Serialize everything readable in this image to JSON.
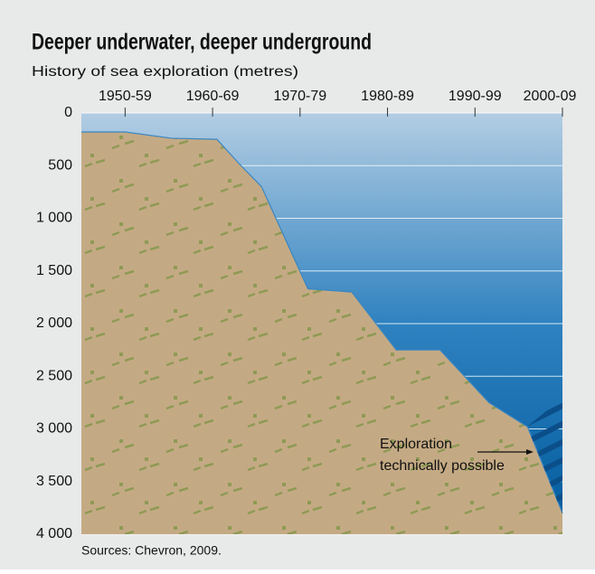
{
  "chart_data": {
    "type": "area",
    "title": "Deeper underwater, deeper underground",
    "subtitle": "History of sea exploration (metres)",
    "source": "Sources: Chevron, 2009.",
    "annotation": [
      "Exploration",
      "technically possible"
    ],
    "x": [
      1945,
      1950,
      1955.3,
      1960.5,
      1962.9,
      1965.6,
      1970.9,
      1975.9,
      1981,
      1986,
      1991.6,
      1996,
      2000
    ],
    "values": [
      180,
      180,
      240,
      250,
      470,
      700,
      1670,
      1700,
      2250,
      2250,
      2750,
      2980,
      3800
    ],
    "color": "#c4aa84",
    "xlim": [
      1945,
      2000
    ],
    "xticks": [
      {
        "value": 1950,
        "label": "1950-59"
      },
      {
        "value": 1960,
        "label": "1960-69"
      },
      {
        "value": 1970,
        "label": "1970-79"
      },
      {
        "value": 1980,
        "label": "1980-89"
      },
      {
        "value": 1990,
        "label": "1990-99"
      },
      {
        "value": 2000,
        "label": "2000-09"
      }
    ],
    "ylim": [
      0,
      4000
    ],
    "y_reversed": true,
    "yticks": [
      0,
      500,
      {
        "value": 1000,
        "label": "1 000"
      },
      {
        "value": 1500,
        "label": "1 500"
      },
      {
        "value": 2000,
        "label": "2 000"
      },
      {
        "value": 2500,
        "label": "2 500"
      },
      {
        "value": 3000,
        "label": "3 000"
      },
      {
        "value": 3500,
        "label": "3 500"
      },
      {
        "value": 4000,
        "label": "4 000"
      }
    ],
    "grid": true
  }
}
